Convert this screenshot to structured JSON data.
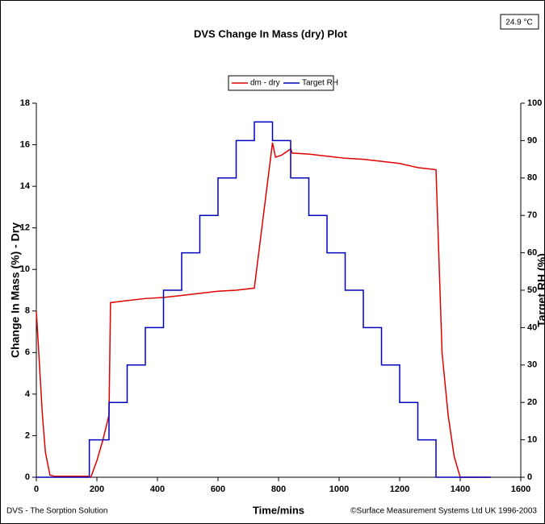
{
  "chart_data": {
    "type": "line",
    "title": "DVS Change In Mass (dry) Plot",
    "temperature": "24.9 °C",
    "xlabel": "Time/mins",
    "ylabel": "Change In Mass (%) - Dry",
    "y2label": "Target RH (%)",
    "footer_left": "DVS - The Sorption Solution",
    "footer_right": "©Surface Measurement Systems Ltd UK 1996-2003",
    "xlim": [
      0,
      1600
    ],
    "xticks": [
      0,
      200,
      400,
      600,
      800,
      1000,
      1200,
      1400,
      1600
    ],
    "ylim": [
      0,
      18
    ],
    "yticks": [
      0,
      2,
      4,
      6,
      8,
      10,
      12,
      14,
      16,
      18
    ],
    "y2lim": [
      0,
      100
    ],
    "y2ticks": [
      0,
      10,
      20,
      30,
      40,
      50,
      60,
      70,
      80,
      90,
      100
    ],
    "legend": "top",
    "series": [
      {
        "name": "dm - dry",
        "color": "#e00000",
        "x": [
          0,
          10,
          20,
          30,
          45,
          60,
          170,
          180,
          200,
          220,
          240,
          245,
          300,
          360,
          420,
          480,
          540,
          600,
          660,
          720,
          780,
          790,
          810,
          840,
          845,
          900,
          960,
          1020,
          1080,
          1140,
          1200,
          1260,
          1320,
          1340,
          1360,
          1380,
          1400,
          1500
        ],
        "values": [
          8,
          5.5,
          3,
          1.2,
          0.1,
          0.05,
          0.05,
          0,
          0.8,
          1.8,
          3,
          8.4,
          8.5,
          8.6,
          8.65,
          8.75,
          8.85,
          8.95,
          9,
          9.1,
          16.1,
          15.4,
          15.5,
          15.8,
          15.6,
          15.55,
          15.45,
          15.35,
          15.3,
          15.2,
          15.1,
          14.9,
          14.8,
          6,
          3,
          1,
          0,
          0
        ]
      },
      {
        "name": "Target RH",
        "color": "#0000c0",
        "axis": "y2",
        "x": [
          0,
          175,
          175,
          240,
          240,
          300,
          300,
          360,
          360,
          420,
          420,
          480,
          480,
          540,
          540,
          600,
          600,
          660,
          660,
          720,
          720,
          780,
          780,
          840,
          840,
          900,
          900,
          960,
          960,
          1020,
          1020,
          1080,
          1080,
          1140,
          1140,
          1200,
          1200,
          1260,
          1260,
          1320,
          1320,
          1500
        ],
        "values": [
          0,
          0,
          10,
          10,
          20,
          20,
          30,
          30,
          40,
          40,
          50,
          50,
          60,
          60,
          70,
          70,
          80,
          80,
          90,
          90,
          95,
          95,
          90,
          90,
          80,
          80,
          70,
          70,
          60,
          60,
          50,
          50,
          40,
          40,
          30,
          30,
          20,
          20,
          10,
          10,
          0,
          0
        ]
      }
    ]
  }
}
